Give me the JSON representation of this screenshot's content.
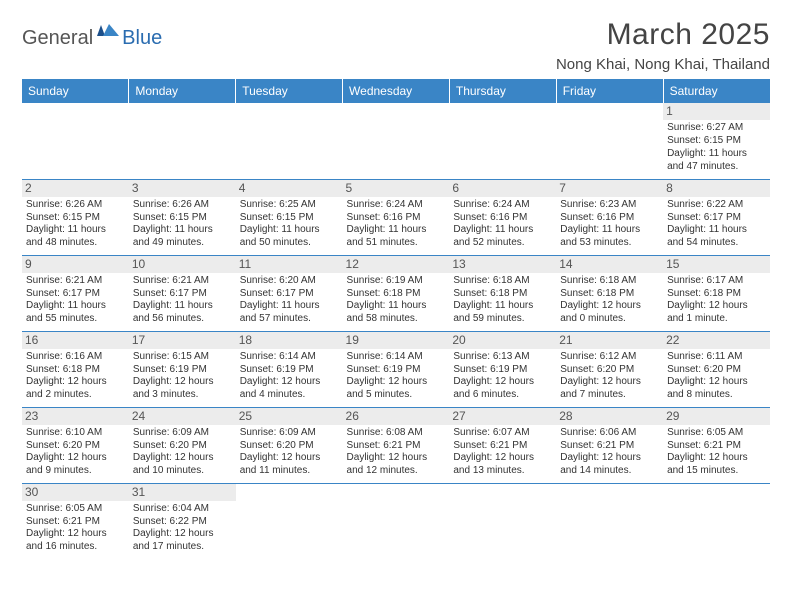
{
  "logo": {
    "part1": "General",
    "part2": "Blue"
  },
  "title": "March 2025",
  "location": "Nong Khai, Nong Khai, Thailand",
  "colors": {
    "header_bg": "#3a85c6",
    "header_text": "#ffffff",
    "daynum_bg": "#ececec",
    "border": "#3a85c6",
    "logo_accent": "#2a6cb0"
  },
  "weekdays": [
    "Sunday",
    "Monday",
    "Tuesday",
    "Wednesday",
    "Thursday",
    "Friday",
    "Saturday"
  ],
  "weeks": [
    [
      null,
      null,
      null,
      null,
      null,
      null,
      {
        "n": "1",
        "sr": "Sunrise: 6:27 AM",
        "ss": "Sunset: 6:15 PM",
        "dl": "Daylight: 11 hours and 47 minutes."
      }
    ],
    [
      {
        "n": "2",
        "sr": "Sunrise: 6:26 AM",
        "ss": "Sunset: 6:15 PM",
        "dl": "Daylight: 11 hours and 48 minutes."
      },
      {
        "n": "3",
        "sr": "Sunrise: 6:26 AM",
        "ss": "Sunset: 6:15 PM",
        "dl": "Daylight: 11 hours and 49 minutes."
      },
      {
        "n": "4",
        "sr": "Sunrise: 6:25 AM",
        "ss": "Sunset: 6:15 PM",
        "dl": "Daylight: 11 hours and 50 minutes."
      },
      {
        "n": "5",
        "sr": "Sunrise: 6:24 AM",
        "ss": "Sunset: 6:16 PM",
        "dl": "Daylight: 11 hours and 51 minutes."
      },
      {
        "n": "6",
        "sr": "Sunrise: 6:24 AM",
        "ss": "Sunset: 6:16 PM",
        "dl": "Daylight: 11 hours and 52 minutes."
      },
      {
        "n": "7",
        "sr": "Sunrise: 6:23 AM",
        "ss": "Sunset: 6:16 PM",
        "dl": "Daylight: 11 hours and 53 minutes."
      },
      {
        "n": "8",
        "sr": "Sunrise: 6:22 AM",
        "ss": "Sunset: 6:17 PM",
        "dl": "Daylight: 11 hours and 54 minutes."
      }
    ],
    [
      {
        "n": "9",
        "sr": "Sunrise: 6:21 AM",
        "ss": "Sunset: 6:17 PM",
        "dl": "Daylight: 11 hours and 55 minutes."
      },
      {
        "n": "10",
        "sr": "Sunrise: 6:21 AM",
        "ss": "Sunset: 6:17 PM",
        "dl": "Daylight: 11 hours and 56 minutes."
      },
      {
        "n": "11",
        "sr": "Sunrise: 6:20 AM",
        "ss": "Sunset: 6:17 PM",
        "dl": "Daylight: 11 hours and 57 minutes."
      },
      {
        "n": "12",
        "sr": "Sunrise: 6:19 AM",
        "ss": "Sunset: 6:18 PM",
        "dl": "Daylight: 11 hours and 58 minutes."
      },
      {
        "n": "13",
        "sr": "Sunrise: 6:18 AM",
        "ss": "Sunset: 6:18 PM",
        "dl": "Daylight: 11 hours and 59 minutes."
      },
      {
        "n": "14",
        "sr": "Sunrise: 6:18 AM",
        "ss": "Sunset: 6:18 PM",
        "dl": "Daylight: 12 hours and 0 minutes."
      },
      {
        "n": "15",
        "sr": "Sunrise: 6:17 AM",
        "ss": "Sunset: 6:18 PM",
        "dl": "Daylight: 12 hours and 1 minute."
      }
    ],
    [
      {
        "n": "16",
        "sr": "Sunrise: 6:16 AM",
        "ss": "Sunset: 6:18 PM",
        "dl": "Daylight: 12 hours and 2 minutes."
      },
      {
        "n": "17",
        "sr": "Sunrise: 6:15 AM",
        "ss": "Sunset: 6:19 PM",
        "dl": "Daylight: 12 hours and 3 minutes."
      },
      {
        "n": "18",
        "sr": "Sunrise: 6:14 AM",
        "ss": "Sunset: 6:19 PM",
        "dl": "Daylight: 12 hours and 4 minutes."
      },
      {
        "n": "19",
        "sr": "Sunrise: 6:14 AM",
        "ss": "Sunset: 6:19 PM",
        "dl": "Daylight: 12 hours and 5 minutes."
      },
      {
        "n": "20",
        "sr": "Sunrise: 6:13 AM",
        "ss": "Sunset: 6:19 PM",
        "dl": "Daylight: 12 hours and 6 minutes."
      },
      {
        "n": "21",
        "sr": "Sunrise: 6:12 AM",
        "ss": "Sunset: 6:20 PM",
        "dl": "Daylight: 12 hours and 7 minutes."
      },
      {
        "n": "22",
        "sr": "Sunrise: 6:11 AM",
        "ss": "Sunset: 6:20 PM",
        "dl": "Daylight: 12 hours and 8 minutes."
      }
    ],
    [
      {
        "n": "23",
        "sr": "Sunrise: 6:10 AM",
        "ss": "Sunset: 6:20 PM",
        "dl": "Daylight: 12 hours and 9 minutes."
      },
      {
        "n": "24",
        "sr": "Sunrise: 6:09 AM",
        "ss": "Sunset: 6:20 PM",
        "dl": "Daylight: 12 hours and 10 minutes."
      },
      {
        "n": "25",
        "sr": "Sunrise: 6:09 AM",
        "ss": "Sunset: 6:20 PM",
        "dl": "Daylight: 12 hours and 11 minutes."
      },
      {
        "n": "26",
        "sr": "Sunrise: 6:08 AM",
        "ss": "Sunset: 6:21 PM",
        "dl": "Daylight: 12 hours and 12 minutes."
      },
      {
        "n": "27",
        "sr": "Sunrise: 6:07 AM",
        "ss": "Sunset: 6:21 PM",
        "dl": "Daylight: 12 hours and 13 minutes."
      },
      {
        "n": "28",
        "sr": "Sunrise: 6:06 AM",
        "ss": "Sunset: 6:21 PM",
        "dl": "Daylight: 12 hours and 14 minutes."
      },
      {
        "n": "29",
        "sr": "Sunrise: 6:05 AM",
        "ss": "Sunset: 6:21 PM",
        "dl": "Daylight: 12 hours and 15 minutes."
      }
    ],
    [
      {
        "n": "30",
        "sr": "Sunrise: 6:05 AM",
        "ss": "Sunset: 6:21 PM",
        "dl": "Daylight: 12 hours and 16 minutes."
      },
      {
        "n": "31",
        "sr": "Sunrise: 6:04 AM",
        "ss": "Sunset: 6:22 PM",
        "dl": "Daylight: 12 hours and 17 minutes."
      },
      null,
      null,
      null,
      null,
      null
    ]
  ]
}
